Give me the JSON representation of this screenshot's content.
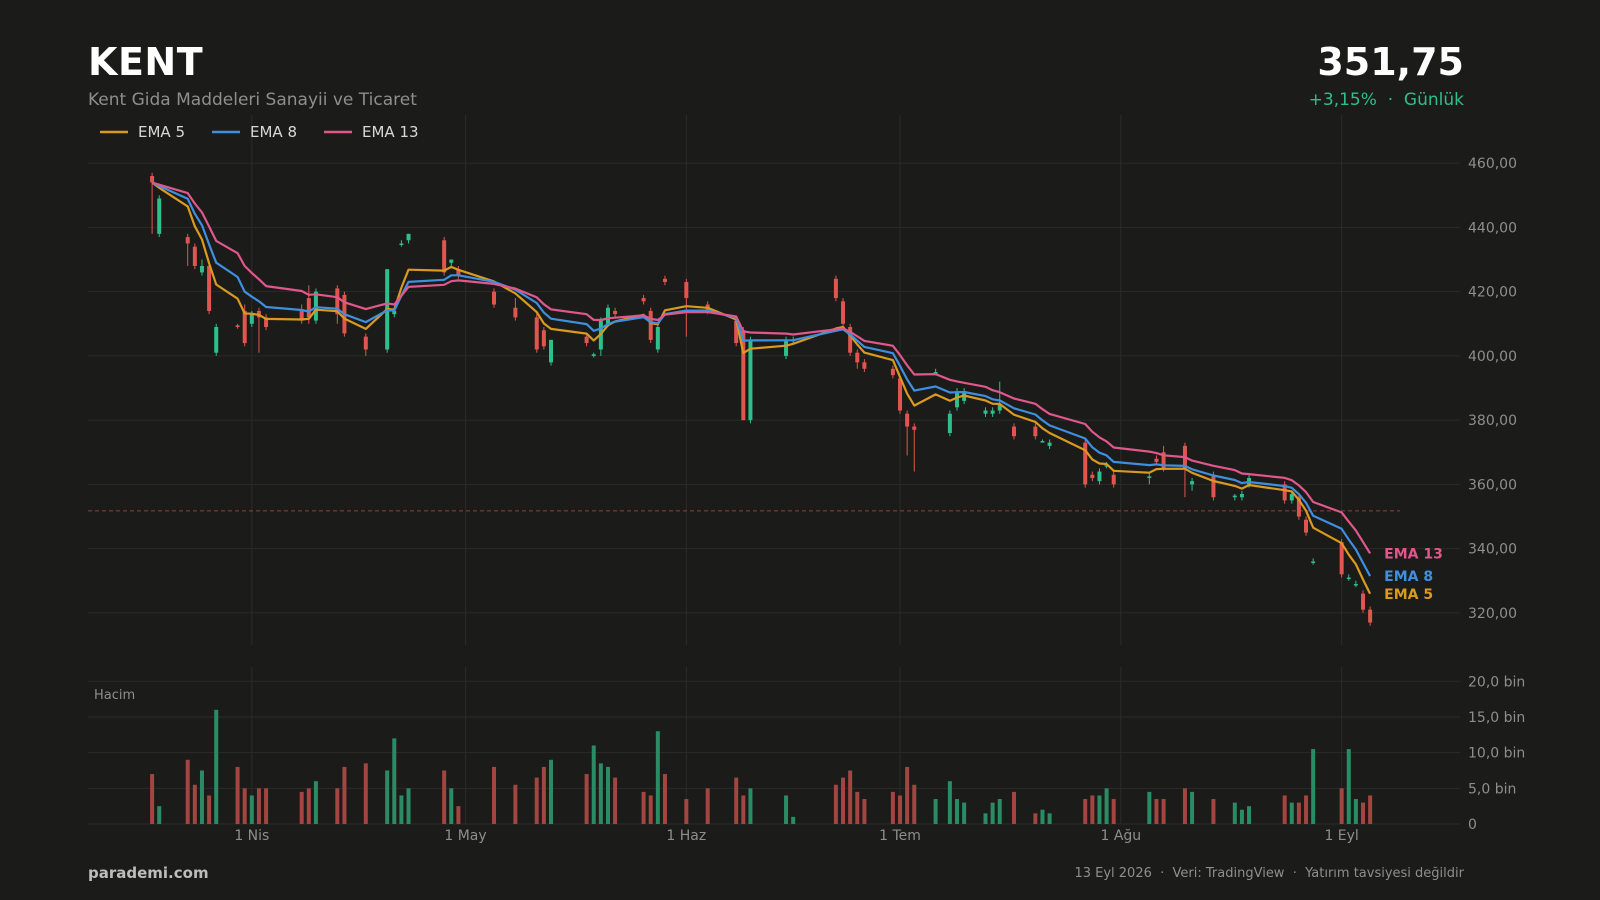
{
  "header": {
    "ticker": "KENT",
    "company": "Kent Gida Maddeleri Sanayii ve Ticaret",
    "price": "351,75",
    "change": "+3,15%",
    "change_sep": "  ·  ",
    "period": "Günlük"
  },
  "footer": {
    "brand": "parademi.com",
    "date": "13 Eyl 2026",
    "sep": "  ·  ",
    "source": "Veri: TradingView",
    "disclaimer": "Yatırım tavsiyesi değildir"
  },
  "colors": {
    "background": "#1b1b1a",
    "up": "#2fbf8a",
    "down": "#e0564f",
    "ema5": "#d99a1e",
    "ema8": "#3f8fe0",
    "ema13": "#e0578c",
    "last_price_line": "#c8504a"
  },
  "chart_data": {
    "type": "candlestick",
    "price_axis": {
      "min": 310,
      "max": 475,
      "ticks": [
        320,
        340,
        360,
        380,
        400,
        420,
        440,
        460
      ],
      "tick_labels": [
        "320,00",
        "340,00",
        "360,00",
        "380,00",
        "400,00",
        "420,00",
        "440,00",
        "460,00"
      ]
    },
    "volume_axis": {
      "label": "Hacim",
      "min": 0,
      "max": 22,
      "unit": "bin",
      "ticks": [
        0,
        5,
        10,
        15,
        20
      ],
      "tick_labels": [
        "0",
        "5,0 bin",
        "10,0 bin",
        "15,0 bin",
        "20,0 bin"
      ]
    },
    "x_axis": {
      "start": "2026-03-09",
      "end": "2026-09-12",
      "tick_dates": [
        "2026-04-01",
        "2026-05-01",
        "2026-06-01",
        "2026-07-01",
        "2026-08-01",
        "2026-09-01"
      ],
      "tick_labels": [
        "1 Nis",
        "1 May",
        "1 Haz",
        "1 Tem",
        "1 Ağu",
        "1 Eyl"
      ]
    },
    "last_price": 351.75,
    "legend": [
      "EMA 5",
      "EMA 8",
      "EMA 13"
    ],
    "end_labels": [
      "EMA 13",
      "EMA 8",
      "EMA 5"
    ],
    "candles": [
      {
        "d": "2026-03-18",
        "o": 456,
        "h": 457,
        "l": 438,
        "c": 454,
        "v": 7
      },
      {
        "d": "2026-03-19",
        "o": 438,
        "h": 450,
        "l": 437,
        "c": 449,
        "v": 2.5
      },
      {
        "d": "2026-03-23",
        "o": 437,
        "h": 438,
        "l": 428,
        "c": 435,
        "v": 9
      },
      {
        "d": "2026-03-24",
        "o": 434,
        "h": 435,
        "l": 427,
        "c": 428,
        "v": 5.5
      },
      {
        "d": "2026-03-25",
        "o": 426,
        "h": 430,
        "l": 425,
        "c": 428,
        "v": 7.5
      },
      {
        "d": "2026-03-26",
        "o": 428,
        "h": 429,
        "l": 413,
        "c": 414,
        "v": 4
      },
      {
        "d": "2026-03-27",
        "o": 401,
        "h": 410,
        "l": 400,
        "c": 409,
        "v": 16
      },
      {
        "d": "2026-03-30",
        "o": 409.5,
        "h": 410,
        "l": 408.5,
        "c": 409,
        "v": 8
      },
      {
        "d": "2026-03-31",
        "o": 414,
        "h": 416,
        "l": 403,
        "c": 404,
        "v": 5
      },
      {
        "d": "2026-04-01",
        "o": 410,
        "h": 414,
        "l": 409,
        "c": 413,
        "v": 4
      },
      {
        "d": "2026-04-02",
        "o": 414,
        "h": 415,
        "l": 401,
        "c": 412,
        "v": 5
      },
      {
        "d": "2026-04-03",
        "o": 412,
        "h": 413,
        "l": 408,
        "c": 409,
        "v": 5
      },
      {
        "d": "2026-04-08",
        "o": 414,
        "h": 416,
        "l": 410,
        "c": 411,
        "v": 4.5
      },
      {
        "d": "2026-04-09",
        "o": 418,
        "h": 422,
        "l": 410,
        "c": 412,
        "v": 5
      },
      {
        "d": "2026-04-10",
        "o": 411,
        "h": 421,
        "l": 410,
        "c": 420,
        "v": 6
      },
      {
        "d": "2026-04-13",
        "o": 421,
        "h": 422,
        "l": 410,
        "c": 413,
        "v": 5
      },
      {
        "d": "2026-04-14",
        "o": 419,
        "h": 420,
        "l": 406,
        "c": 407,
        "v": 8
      },
      {
        "d": "2026-04-17",
        "o": 406,
        "h": 407,
        "l": 400,
        "c": 402,
        "v": 8.5
      },
      {
        "d": "2026-04-20",
        "o": 402,
        "h": 427,
        "l": 401,
        "c": 427,
        "v": 7.5
      },
      {
        "d": "2026-04-21",
        "o": 413,
        "h": 415,
        "l": 412,
        "c": 414,
        "v": 12
      },
      {
        "d": "2026-04-22",
        "o": 435,
        "h": 436,
        "l": 434,
        "c": 435,
        "v": 4
      },
      {
        "d": "2026-04-23",
        "o": 436,
        "h": 438,
        "l": 435,
        "c": 438,
        "v": 5
      },
      {
        "d": "2026-04-28",
        "o": 436,
        "h": 437,
        "l": 425,
        "c": 426,
        "v": 7.5
      },
      {
        "d": "2026-04-29",
        "o": 429,
        "h": 430,
        "l": 428,
        "c": 430,
        "v": 5
      },
      {
        "d": "2026-04-30",
        "o": 427,
        "h": 428,
        "l": 424,
        "c": 425,
        "v": 2.5
      },
      {
        "d": "2026-05-05",
        "o": 420,
        "h": 421,
        "l": 415,
        "c": 416,
        "v": 8
      },
      {
        "d": "2026-05-08",
        "o": 415,
        "h": 418,
        "l": 411,
        "c": 412,
        "v": 5.5
      },
      {
        "d": "2026-05-11",
        "o": 412,
        "h": 413,
        "l": 401,
        "c": 402,
        "v": 6.5
      },
      {
        "d": "2026-05-12",
        "o": 408,
        "h": 409,
        "l": 402,
        "c": 403,
        "v": 8
      },
      {
        "d": "2026-05-13",
        "o": 398,
        "h": 405,
        "l": 397,
        "c": 405,
        "v": 9
      },
      {
        "d": "2026-05-18",
        "o": 406,
        "h": 407,
        "l": 403,
        "c": 404,
        "v": 7
      },
      {
        "d": "2026-05-19",
        "o": 400,
        "h": 401,
        "l": 399.5,
        "c": 400.5,
        "v": 11
      },
      {
        "d": "2026-05-20",
        "o": 402,
        "h": 412,
        "l": 400,
        "c": 411,
        "v": 8.5
      },
      {
        "d": "2026-05-21",
        "o": 410,
        "h": 416,
        "l": 409,
        "c": 415,
        "v": 8
      },
      {
        "d": "2026-05-22",
        "o": 414,
        "h": 415,
        "l": 412,
        "c": 413,
        "v": 6.5
      },
      {
        "d": "2026-05-26",
        "o": 418,
        "h": 419,
        "l": 416,
        "c": 417,
        "v": 4.5
      },
      {
        "d": "2026-05-27",
        "o": 414,
        "h": 415,
        "l": 404,
        "c": 405,
        "v": 4
      },
      {
        "d": "2026-05-28",
        "o": 402,
        "h": 410,
        "l": 401,
        "c": 409,
        "v": 13
      },
      {
        "d": "2026-05-29",
        "o": 424,
        "h": 425,
        "l": 422,
        "c": 423,
        "v": 7
      },
      {
        "d": "2026-06-01",
        "o": 423,
        "h": 424,
        "l": 406,
        "c": 418,
        "v": 3.5
      },
      {
        "d": "2026-06-04",
        "o": 416,
        "h": 417,
        "l": 413,
        "c": 414,
        "v": 5
      },
      {
        "d": "2026-06-08",
        "o": 411,
        "h": 412,
        "l": 403,
        "c": 404,
        "v": 6.5
      },
      {
        "d": "2026-06-09",
        "o": 408,
        "h": 409,
        "l": 380,
        "c": 380,
        "v": 4
      },
      {
        "d": "2026-06-10",
        "o": 380,
        "h": 406,
        "l": 379,
        "c": 405,
        "v": 5
      },
      {
        "d": "2026-06-15",
        "o": 400,
        "h": 406,
        "l": 399,
        "c": 405,
        "v": 4
      },
      {
        "d": "2026-06-16",
        "o": 405,
        "h": 406,
        "l": 404,
        "c": 405,
        "v": 1
      },
      {
        "d": "2026-06-22",
        "o": 424,
        "h": 425,
        "l": 417,
        "c": 418,
        "v": 5.5
      },
      {
        "d": "2026-06-23",
        "o": 417,
        "h": 418,
        "l": 409,
        "c": 410,
        "v": 6.5
      },
      {
        "d": "2026-06-24",
        "o": 409,
        "h": 410,
        "l": 400,
        "c": 401,
        "v": 7.5
      },
      {
        "d": "2026-06-25",
        "o": 401,
        "h": 402,
        "l": 396,
        "c": 398,
        "v": 4.5
      },
      {
        "d": "2026-06-26",
        "o": 398,
        "h": 399,
        "l": 395,
        "c": 396,
        "v": 3.5
      },
      {
        "d": "2026-06-30",
        "o": 396,
        "h": 397,
        "l": 393,
        "c": 394,
        "v": 4.5
      },
      {
        "d": "2026-07-01",
        "o": 393,
        "h": 394,
        "l": 382,
        "c": 383,
        "v": 4
      },
      {
        "d": "2026-07-02",
        "o": 382,
        "h": 383,
        "l": 369,
        "c": 378,
        "v": 8
      },
      {
        "d": "2026-07-03",
        "o": 378,
        "h": 379,
        "l": 364,
        "c": 377,
        "v": 5.5
      },
      {
        "d": "2026-07-06",
        "o": 395,
        "h": 396,
        "l": 394,
        "c": 395,
        "v": 3.5
      },
      {
        "d": "2026-07-08",
        "o": 376,
        "h": 383,
        "l": 375,
        "c": 382,
        "v": 6
      },
      {
        "d": "2026-07-09",
        "o": 384,
        "h": 390,
        "l": 383,
        "c": 389,
        "v": 3.5
      },
      {
        "d": "2026-07-10",
        "o": 386,
        "h": 390,
        "l": 385,
        "c": 389,
        "v": 3
      },
      {
        "d": "2026-07-13",
        "o": 382,
        "h": 384,
        "l": 381,
        "c": 383,
        "v": 1.5
      },
      {
        "d": "2026-07-14",
        "o": 382,
        "h": 384,
        "l": 381,
        "c": 383,
        "v": 3
      },
      {
        "d": "2026-07-15",
        "o": 383,
        "h": 392,
        "l": 382,
        "c": 385,
        "v": 3.5
      },
      {
        "d": "2026-07-17",
        "o": 378,
        "h": 379,
        "l": 374,
        "c": 375,
        "v": 4.5
      },
      {
        "d": "2026-07-20",
        "o": 378,
        "h": 379,
        "l": 374,
        "c": 375,
        "v": 1.5
      },
      {
        "d": "2026-07-21",
        "o": 373.5,
        "h": 374,
        "l": 373,
        "c": 373.5,
        "v": 2
      },
      {
        "d": "2026-07-22",
        "o": 372,
        "h": 374,
        "l": 371,
        "c": 373,
        "v": 1.5
      },
      {
        "d": "2026-07-27",
        "o": 373,
        "h": 374,
        "l": 359,
        "c": 360,
        "v": 3.5
      },
      {
        "d": "2026-07-28",
        "o": 363,
        "h": 364,
        "l": 361,
        "c": 362,
        "v": 4
      },
      {
        "d": "2026-07-29",
        "o": 361,
        "h": 365,
        "l": 360,
        "c": 364,
        "v": 4
      },
      {
        "d": "2026-07-30",
        "o": 366,
        "h": 367,
        "l": 365,
        "c": 366,
        "v": 5
      },
      {
        "d": "2026-07-31",
        "o": 363,
        "h": 364,
        "l": 359,
        "c": 360,
        "v": 3.5
      },
      {
        "d": "2026-08-05",
        "o": 362,
        "h": 364,
        "l": 360,
        "c": 362.5,
        "v": 4.5
      },
      {
        "d": "2026-08-06",
        "o": 368,
        "h": 369,
        "l": 366,
        "c": 367,
        "v": 3.5
      },
      {
        "d": "2026-08-07",
        "o": 370,
        "h": 372,
        "l": 364,
        "c": 365,
        "v": 3.5
      },
      {
        "d": "2026-08-10",
        "o": 372,
        "h": 373,
        "l": 356,
        "c": 365,
        "v": 5
      },
      {
        "d": "2026-08-11",
        "o": 360,
        "h": 362,
        "l": 358,
        "c": 361,
        "v": 4.5
      },
      {
        "d": "2026-08-14",
        "o": 363,
        "h": 364,
        "l": 355,
        "c": 356,
        "v": 3.5
      },
      {
        "d": "2026-08-17",
        "o": 356,
        "h": 357,
        "l": 355,
        "c": 356.5,
        "v": 3
      },
      {
        "d": "2026-08-18",
        "o": 356,
        "h": 358,
        "l": 355,
        "c": 357,
        "v": 2
      },
      {
        "d": "2026-08-19",
        "o": 360,
        "h": 363,
        "l": 359,
        "c": 362,
        "v": 2.5
      },
      {
        "d": "2026-08-24",
        "o": 360,
        "h": 361,
        "l": 354,
        "c": 355,
        "v": 4
      },
      {
        "d": "2026-08-25",
        "o": 355,
        "h": 358,
        "l": 354,
        "c": 357,
        "v": 3
      },
      {
        "d": "2026-08-26",
        "o": 356,
        "h": 357,
        "l": 349,
        "c": 350,
        "v": 3
      },
      {
        "d": "2026-08-27",
        "o": 349,
        "h": 350,
        "l": 344,
        "c": 345,
        "v": 4
      },
      {
        "d": "2026-08-28",
        "o": 336,
        "h": 337,
        "l": 335,
        "c": 336,
        "v": 10.5
      },
      {
        "d": "2026-09-01",
        "o": 342,
        "h": 343,
        "l": 331,
        "c": 332,
        "v": 5
      },
      {
        "d": "2026-09-02",
        "o": 331,
        "h": 332,
        "l": 330,
        "c": 331,
        "v": 10.5
      },
      {
        "d": "2026-09-03",
        "o": 329,
        "h": 330,
        "l": 328,
        "c": 329,
        "v": 3.5
      },
      {
        "d": "2026-09-04",
        "o": 326,
        "h": 327,
        "l": 320,
        "c": 321,
        "v": 3
      },
      {
        "d": "2026-09-05",
        "o": 321,
        "h": 322,
        "l": 316,
        "c": 317,
        "v": 4
      }
    ]
  }
}
